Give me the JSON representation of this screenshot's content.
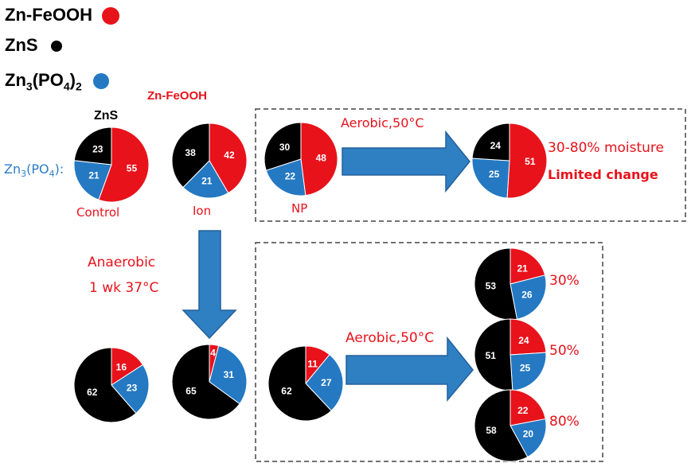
{
  "colors": {
    "zn_feooh": "#e8121b",
    "zns": "#000000",
    "zn3po42": "#2479c2",
    "arrow": "#2f7fc3",
    "label_red": "#e8121b",
    "label_blue": "#2c7ec6"
  },
  "legend": {
    "items": [
      {
        "label": "Zn-FeOOH",
        "color": "#e8121b"
      },
      {
        "label": "ZnS",
        "color": "#000000"
      },
      {
        "label": "Zn3(PO4)2",
        "color": "#2479c2"
      }
    ]
  },
  "labels": {
    "zns_header": "ZnS",
    "zn_feooh_header": "Zn-FeOOH",
    "zn3po42_side": "Zn3(PO4)2",
    "control": "Control",
    "ion": "Ion",
    "np": "NP",
    "aerobic_top": "Aerobic,50°C",
    "moisture": "30-80% moisture",
    "limited_change": "Limited change",
    "anaerobic_line1": "Anaerobic",
    "anaerobic_line2": "1 wk 37°C",
    "aerobic_bottom": "Aerobic,50°C",
    "pct_30": "30%",
    "pct_50": "50%",
    "pct_80": "80%"
  },
  "chart_data": {
    "type": "pie",
    "series_order": [
      "Zn-FeOOH",
      "Zn3(PO4)2",
      "ZnS"
    ],
    "pies": [
      {
        "id": "control",
        "label": "Control",
        "values": {
          "Zn-FeOOH": 55,
          "Zn3(PO4)2": 21,
          "ZnS": 23
        }
      },
      {
        "id": "ion",
        "label": "Ion",
        "values": {
          "Zn-FeOOH": 42,
          "Zn3(PO4)2": 21,
          "ZnS": 38
        }
      },
      {
        "id": "np",
        "label": "NP",
        "values": {
          "Zn-FeOOH": 48,
          "Zn3(PO4)2": 22,
          "ZnS": 30
        }
      },
      {
        "id": "np-aerobic",
        "label": "",
        "values": {
          "Zn-FeOOH": 51,
          "Zn3(PO4)2": 25,
          "ZnS": 24
        }
      },
      {
        "id": "control-anaerobic",
        "label": "",
        "values": {
          "Zn-FeOOH": 16,
          "Zn3(PO4)2": 23,
          "ZnS": 62
        }
      },
      {
        "id": "ion-anaerobic",
        "label": "",
        "values": {
          "Zn-FeOOH": 4,
          "Zn3(PO4)2": 31,
          "ZnS": 65
        }
      },
      {
        "id": "np-anaerobic",
        "label": "",
        "values": {
          "Zn-FeOOH": 11,
          "Zn3(PO4)2": 27,
          "ZnS": 62
        }
      },
      {
        "id": "np-anaerobic-aerobic-30",
        "label": "30%",
        "values": {
          "Zn-FeOOH": 21,
          "Zn3(PO4)2": 26,
          "ZnS": 53
        }
      },
      {
        "id": "np-anaerobic-aerobic-50",
        "label": "50%",
        "values": {
          "Zn-FeOOH": 24,
          "Zn3(PO4)2": 25,
          "ZnS": 51
        }
      },
      {
        "id": "np-anaerobic-aerobic-80",
        "label": "80%",
        "values": {
          "Zn-FeOOH": 22,
          "Zn3(PO4)2": 20,
          "ZnS": 58
        }
      }
    ]
  }
}
